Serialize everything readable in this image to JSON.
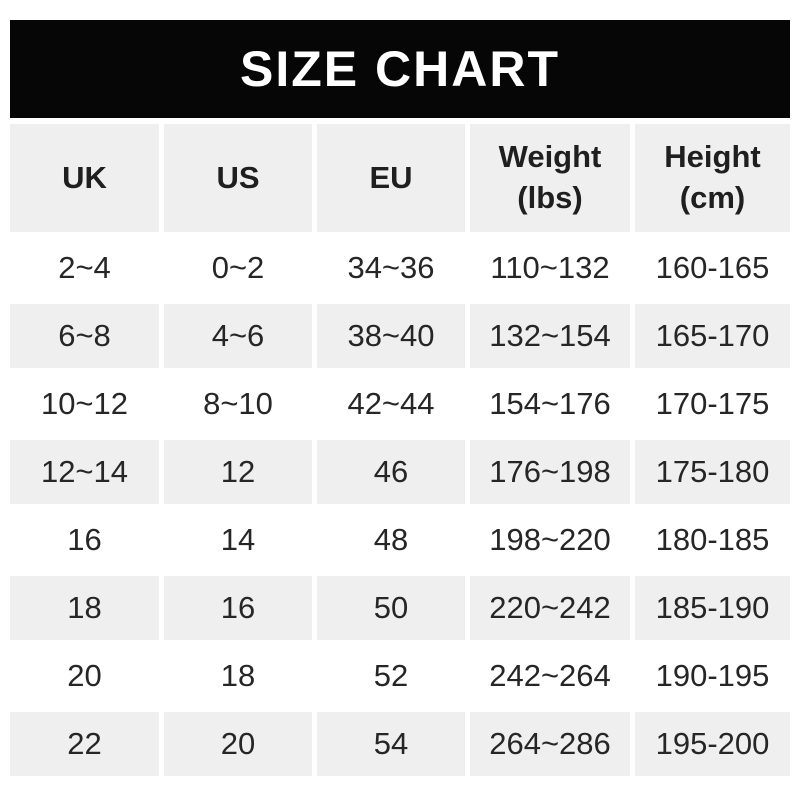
{
  "title": "SIZE CHART",
  "colors": {
    "banner_bg": "#060606",
    "banner_text": "#ffffff",
    "row_alt_bg": "#f0efef",
    "row_bg": "#ffffff",
    "text": "#262626"
  },
  "header_lines": [
    [
      "UK"
    ],
    [
      "US"
    ],
    [
      "EU"
    ],
    [
      "Weight",
      "(lbs)"
    ],
    [
      "Height",
      "(cm)"
    ]
  ],
  "chart_data": {
    "type": "table",
    "title": "SIZE CHART",
    "columns": [
      "UK",
      "US",
      "EU",
      "Weight (lbs)",
      "Height (cm)"
    ],
    "rows": [
      [
        "2~4",
        "0~2",
        "34~36",
        "110~132",
        "160-165"
      ],
      [
        "6~8",
        "4~6",
        "38~40",
        "132~154",
        "165-170"
      ],
      [
        "10~12",
        "8~10",
        "42~44",
        "154~176",
        "170-175"
      ],
      [
        "12~14",
        "12",
        "46",
        "176~198",
        "175-180"
      ],
      [
        "16",
        "14",
        "48",
        "198~220",
        "180-185"
      ],
      [
        "18",
        "16",
        "50",
        "220~242",
        "185-190"
      ],
      [
        "20",
        "18",
        "52",
        "242~264",
        "190-195"
      ],
      [
        "22",
        "20",
        "54",
        "264~286",
        "195-200"
      ]
    ],
    "layout": {
      "header_row_background": "#f0efef",
      "alternating_rows": true,
      "gridlines": false
    }
  }
}
